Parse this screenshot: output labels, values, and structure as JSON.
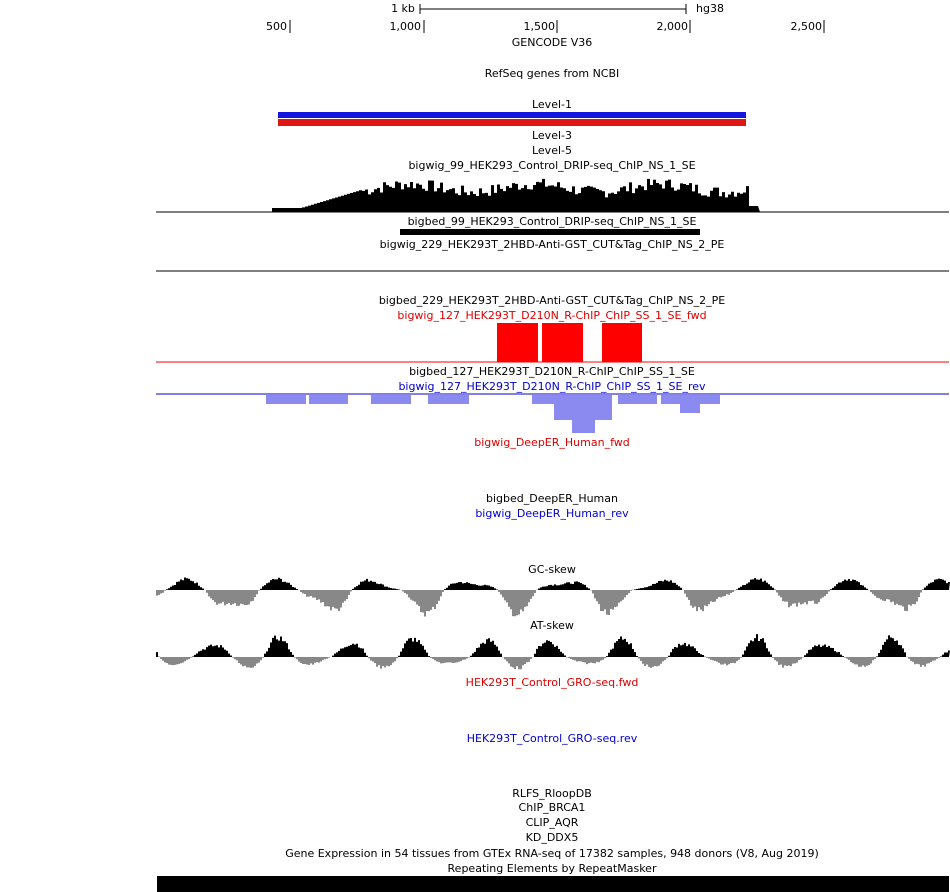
{
  "ruler": {
    "scale": "1 kb",
    "assembly": "hg38",
    "ticks": [
      "500",
      "1,000",
      "1,500",
      "2,000",
      "2,500"
    ]
  },
  "tracks": [
    "GENCODE V36",
    "RefSeq genes from NCBI",
    "Level-1",
    "Level-3",
    "Level-5",
    "bigwig_99_HEK293_Control_DRIP-seq_ChIP_NS_1_SE",
    "bigbed_99_HEK293_Control_DRIP-seq_ChIP_NS_1_SE",
    "bigwig_229_HEK293T_2HBD-Anti-GST_CUT&Tag_ChIP_NS_2_PE",
    "bigbed_229_HEK293T_2HBD-Anti-GST_CUT&Tag_ChIP_NS_2_PE",
    "bigwig_127_HEK293T_D210N_R-ChIP_ChIP_SS_1_SE_fwd",
    "bigbed_127_HEK293T_D210N_R-ChIP_ChIP_SS_1_SE",
    "bigwig_127_HEK293T_D210N_R-ChIP_ChIP_SS_1_SE_rev",
    "bigwig_DeepER_Human_fwd",
    "bigbed_DeepER_Human",
    "bigwig_DeepER_Human_rev",
    "GC-skew",
    "AT-skew",
    "HEK293T_Control_GRO-seq.fwd",
    "HEK293T_Control_GRO-seq.rev",
    "RLFS_RloopDB",
    "ChIP_BRCA1",
    "CLIP_AQR",
    "KD_DDX5",
    "Gene Expression in 54 tissues from GTEx RNA-seq of 17382 samples, 948 donors (V8, Aug 2019)",
    "Repeating Elements by RepeatMasker"
  ]
}
